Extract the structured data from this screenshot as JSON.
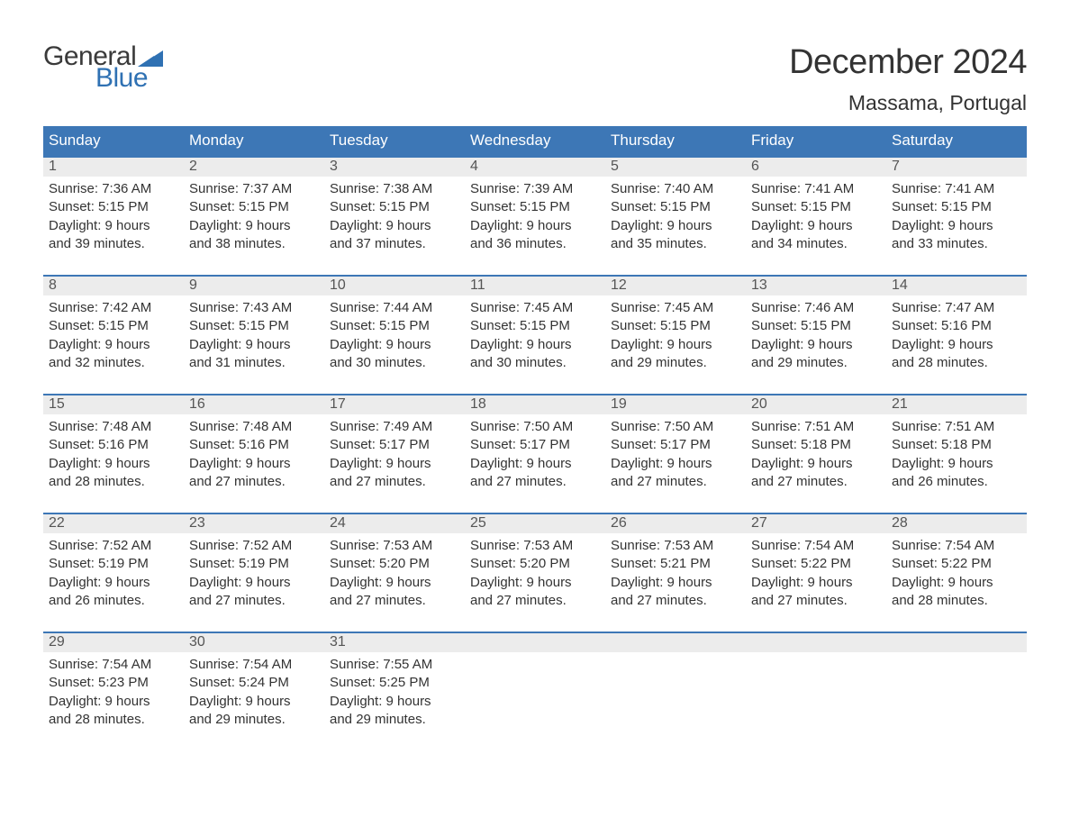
{
  "logo": {
    "word1": "General",
    "word2": "Blue",
    "flag_color": "#2f71b3",
    "text_gray": "#3a3a3a"
  },
  "title": "December 2024",
  "location": "Massama, Portugal",
  "colors": {
    "header_bg": "#3d77b6",
    "header_text": "#ffffff",
    "week_border": "#3d77b6",
    "daynum_bg": "#ececec",
    "daynum_text": "#555555",
    "body_text": "#333333",
    "page_bg": "#ffffff"
  },
  "typography": {
    "title_fontsize": 38,
    "location_fontsize": 23,
    "header_fontsize": 17,
    "daynum_fontsize": 16,
    "body_fontsize": 15
  },
  "weekdays": [
    "Sunday",
    "Monday",
    "Tuesday",
    "Wednesday",
    "Thursday",
    "Friday",
    "Saturday"
  ],
  "weeks": [
    [
      {
        "num": "1",
        "sunrise": "Sunrise: 7:36 AM",
        "sunset": "Sunset: 5:15 PM",
        "day1": "Daylight: 9 hours",
        "day2": "and 39 minutes."
      },
      {
        "num": "2",
        "sunrise": "Sunrise: 7:37 AM",
        "sunset": "Sunset: 5:15 PM",
        "day1": "Daylight: 9 hours",
        "day2": "and 38 minutes."
      },
      {
        "num": "3",
        "sunrise": "Sunrise: 7:38 AM",
        "sunset": "Sunset: 5:15 PM",
        "day1": "Daylight: 9 hours",
        "day2": "and 37 minutes."
      },
      {
        "num": "4",
        "sunrise": "Sunrise: 7:39 AM",
        "sunset": "Sunset: 5:15 PM",
        "day1": "Daylight: 9 hours",
        "day2": "and 36 minutes."
      },
      {
        "num": "5",
        "sunrise": "Sunrise: 7:40 AM",
        "sunset": "Sunset: 5:15 PM",
        "day1": "Daylight: 9 hours",
        "day2": "and 35 minutes."
      },
      {
        "num": "6",
        "sunrise": "Sunrise: 7:41 AM",
        "sunset": "Sunset: 5:15 PM",
        "day1": "Daylight: 9 hours",
        "day2": "and 34 minutes."
      },
      {
        "num": "7",
        "sunrise": "Sunrise: 7:41 AM",
        "sunset": "Sunset: 5:15 PM",
        "day1": "Daylight: 9 hours",
        "day2": "and 33 minutes."
      }
    ],
    [
      {
        "num": "8",
        "sunrise": "Sunrise: 7:42 AM",
        "sunset": "Sunset: 5:15 PM",
        "day1": "Daylight: 9 hours",
        "day2": "and 32 minutes."
      },
      {
        "num": "9",
        "sunrise": "Sunrise: 7:43 AM",
        "sunset": "Sunset: 5:15 PM",
        "day1": "Daylight: 9 hours",
        "day2": "and 31 minutes."
      },
      {
        "num": "10",
        "sunrise": "Sunrise: 7:44 AM",
        "sunset": "Sunset: 5:15 PM",
        "day1": "Daylight: 9 hours",
        "day2": "and 30 minutes."
      },
      {
        "num": "11",
        "sunrise": "Sunrise: 7:45 AM",
        "sunset": "Sunset: 5:15 PM",
        "day1": "Daylight: 9 hours",
        "day2": "and 30 minutes."
      },
      {
        "num": "12",
        "sunrise": "Sunrise: 7:45 AM",
        "sunset": "Sunset: 5:15 PM",
        "day1": "Daylight: 9 hours",
        "day2": "and 29 minutes."
      },
      {
        "num": "13",
        "sunrise": "Sunrise: 7:46 AM",
        "sunset": "Sunset: 5:15 PM",
        "day1": "Daylight: 9 hours",
        "day2": "and 29 minutes."
      },
      {
        "num": "14",
        "sunrise": "Sunrise: 7:47 AM",
        "sunset": "Sunset: 5:16 PM",
        "day1": "Daylight: 9 hours",
        "day2": "and 28 minutes."
      }
    ],
    [
      {
        "num": "15",
        "sunrise": "Sunrise: 7:48 AM",
        "sunset": "Sunset: 5:16 PM",
        "day1": "Daylight: 9 hours",
        "day2": "and 28 minutes."
      },
      {
        "num": "16",
        "sunrise": "Sunrise: 7:48 AM",
        "sunset": "Sunset: 5:16 PM",
        "day1": "Daylight: 9 hours",
        "day2": "and 27 minutes."
      },
      {
        "num": "17",
        "sunrise": "Sunrise: 7:49 AM",
        "sunset": "Sunset: 5:17 PM",
        "day1": "Daylight: 9 hours",
        "day2": "and 27 minutes."
      },
      {
        "num": "18",
        "sunrise": "Sunrise: 7:50 AM",
        "sunset": "Sunset: 5:17 PM",
        "day1": "Daylight: 9 hours",
        "day2": "and 27 minutes."
      },
      {
        "num": "19",
        "sunrise": "Sunrise: 7:50 AM",
        "sunset": "Sunset: 5:17 PM",
        "day1": "Daylight: 9 hours",
        "day2": "and 27 minutes."
      },
      {
        "num": "20",
        "sunrise": "Sunrise: 7:51 AM",
        "sunset": "Sunset: 5:18 PM",
        "day1": "Daylight: 9 hours",
        "day2": "and 27 minutes."
      },
      {
        "num": "21",
        "sunrise": "Sunrise: 7:51 AM",
        "sunset": "Sunset: 5:18 PM",
        "day1": "Daylight: 9 hours",
        "day2": "and 26 minutes."
      }
    ],
    [
      {
        "num": "22",
        "sunrise": "Sunrise: 7:52 AM",
        "sunset": "Sunset: 5:19 PM",
        "day1": "Daylight: 9 hours",
        "day2": "and 26 minutes."
      },
      {
        "num": "23",
        "sunrise": "Sunrise: 7:52 AM",
        "sunset": "Sunset: 5:19 PM",
        "day1": "Daylight: 9 hours",
        "day2": "and 27 minutes."
      },
      {
        "num": "24",
        "sunrise": "Sunrise: 7:53 AM",
        "sunset": "Sunset: 5:20 PM",
        "day1": "Daylight: 9 hours",
        "day2": "and 27 minutes."
      },
      {
        "num": "25",
        "sunrise": "Sunrise: 7:53 AM",
        "sunset": "Sunset: 5:20 PM",
        "day1": "Daylight: 9 hours",
        "day2": "and 27 minutes."
      },
      {
        "num": "26",
        "sunrise": "Sunrise: 7:53 AM",
        "sunset": "Sunset: 5:21 PM",
        "day1": "Daylight: 9 hours",
        "day2": "and 27 minutes."
      },
      {
        "num": "27",
        "sunrise": "Sunrise: 7:54 AM",
        "sunset": "Sunset: 5:22 PM",
        "day1": "Daylight: 9 hours",
        "day2": "and 27 minutes."
      },
      {
        "num": "28",
        "sunrise": "Sunrise: 7:54 AM",
        "sunset": "Sunset: 5:22 PM",
        "day1": "Daylight: 9 hours",
        "day2": "and 28 minutes."
      }
    ],
    [
      {
        "num": "29",
        "sunrise": "Sunrise: 7:54 AM",
        "sunset": "Sunset: 5:23 PM",
        "day1": "Daylight: 9 hours",
        "day2": "and 28 minutes."
      },
      {
        "num": "30",
        "sunrise": "Sunrise: 7:54 AM",
        "sunset": "Sunset: 5:24 PM",
        "day1": "Daylight: 9 hours",
        "day2": "and 29 minutes."
      },
      {
        "num": "31",
        "sunrise": "Sunrise: 7:55 AM",
        "sunset": "Sunset: 5:25 PM",
        "day1": "Daylight: 9 hours",
        "day2": "and 29 minutes."
      },
      {
        "empty": true
      },
      {
        "empty": true
      },
      {
        "empty": true
      },
      {
        "empty": true
      }
    ]
  ]
}
